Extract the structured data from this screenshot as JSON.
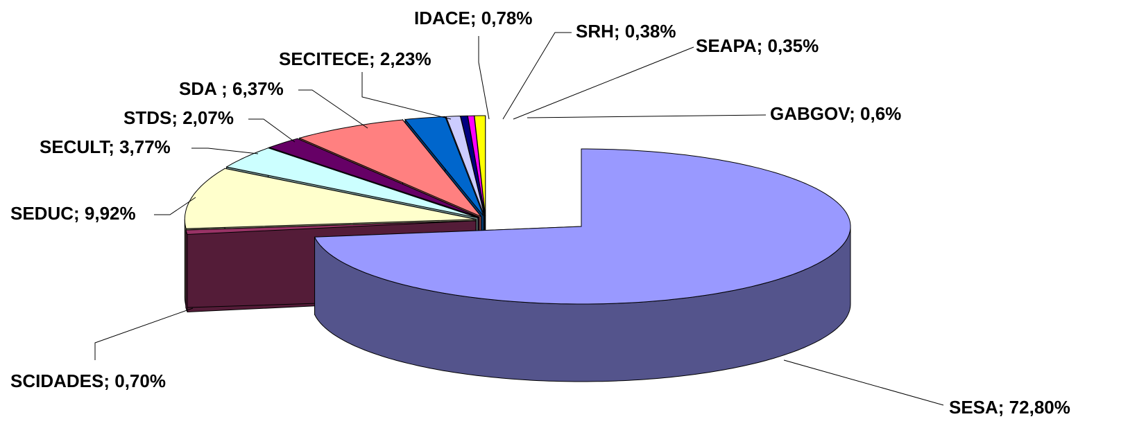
{
  "chart_data": {
    "type": "pie3d",
    "values": [
      72.8,
      0.7,
      9.92,
      3.77,
      2.07,
      6.37,
      2.23,
      0.78,
      0.38,
      0.35,
      0.6
    ],
    "value_labels": [
      "SESA; 72,80%",
      "SCIDADES; 0,70%",
      "SEDUC; 9,92%",
      "SECULT; 3,77%",
      "STDS; 2,07%",
      "SDA ; 6,37%",
      "SECITECE; 2,23%",
      "IDACE; 0,78%",
      "SRH; 0,38%",
      "SEAPA; 0,35%",
      "GABGOV; 0,6%"
    ],
    "colors": [
      "#9999ff",
      "#993366",
      "#ffffcc",
      "#ccffff",
      "#660066",
      "#ff8080",
      "#0066cc",
      "#ccccff",
      "#000080",
      "#ff00ff",
      "#ffff00"
    ]
  }
}
